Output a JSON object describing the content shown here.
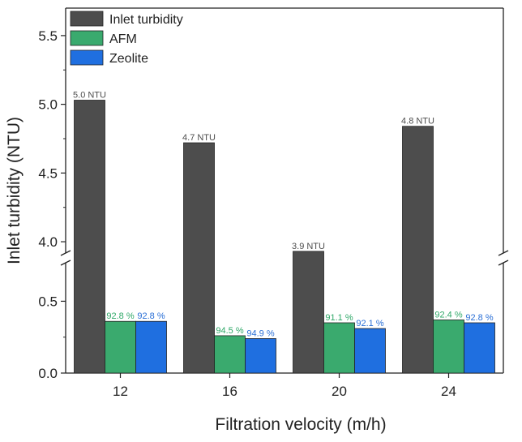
{
  "chart_data": {
    "type": "bar",
    "title": "",
    "xlabel": "Filtration velocity (m/h)",
    "ylabel": "Inlet turbidity (NTU)",
    "categories": [
      "12",
      "16",
      "20",
      "24"
    ],
    "axis_break": true,
    "lower_segment": {
      "ylim": [
        0,
        0.7
      ],
      "ticks": [
        "0.0",
        "0.5"
      ]
    },
    "upper_segment": {
      "ylim": [
        3.9,
        5.7
      ],
      "ticks": [
        "4.0",
        "4.5",
        "5.0",
        "5.5"
      ]
    },
    "legend_position": "top-left",
    "grid": false,
    "series": [
      {
        "name": "Inlet turbidity",
        "color": "#4d4d4d",
        "values": [
          5.03,
          4.72,
          3.93,
          4.84
        ],
        "labels": [
          "5.0 NTU",
          "4.7 NTU",
          "3.9 NTU",
          "4.8 NTU"
        ],
        "label_color": "#4d4d4d"
      },
      {
        "name": "AFM",
        "color": "#3aaa6e",
        "values": [
          0.36,
          0.26,
          0.35,
          0.37
        ],
        "labels": [
          "92.8 %",
          "94.5 %",
          "91.1 %",
          "92.4 %"
        ],
        "label_color": "#2fa868"
      },
      {
        "name": "Zeolite",
        "color": "#1f6fe0",
        "values": [
          0.36,
          0.24,
          0.31,
          0.35
        ],
        "labels": [
          "92.8 %",
          "94.9 %",
          "92.1 %",
          "92.8 %"
        ],
        "label_color": "#2a6fd6"
      }
    ]
  }
}
